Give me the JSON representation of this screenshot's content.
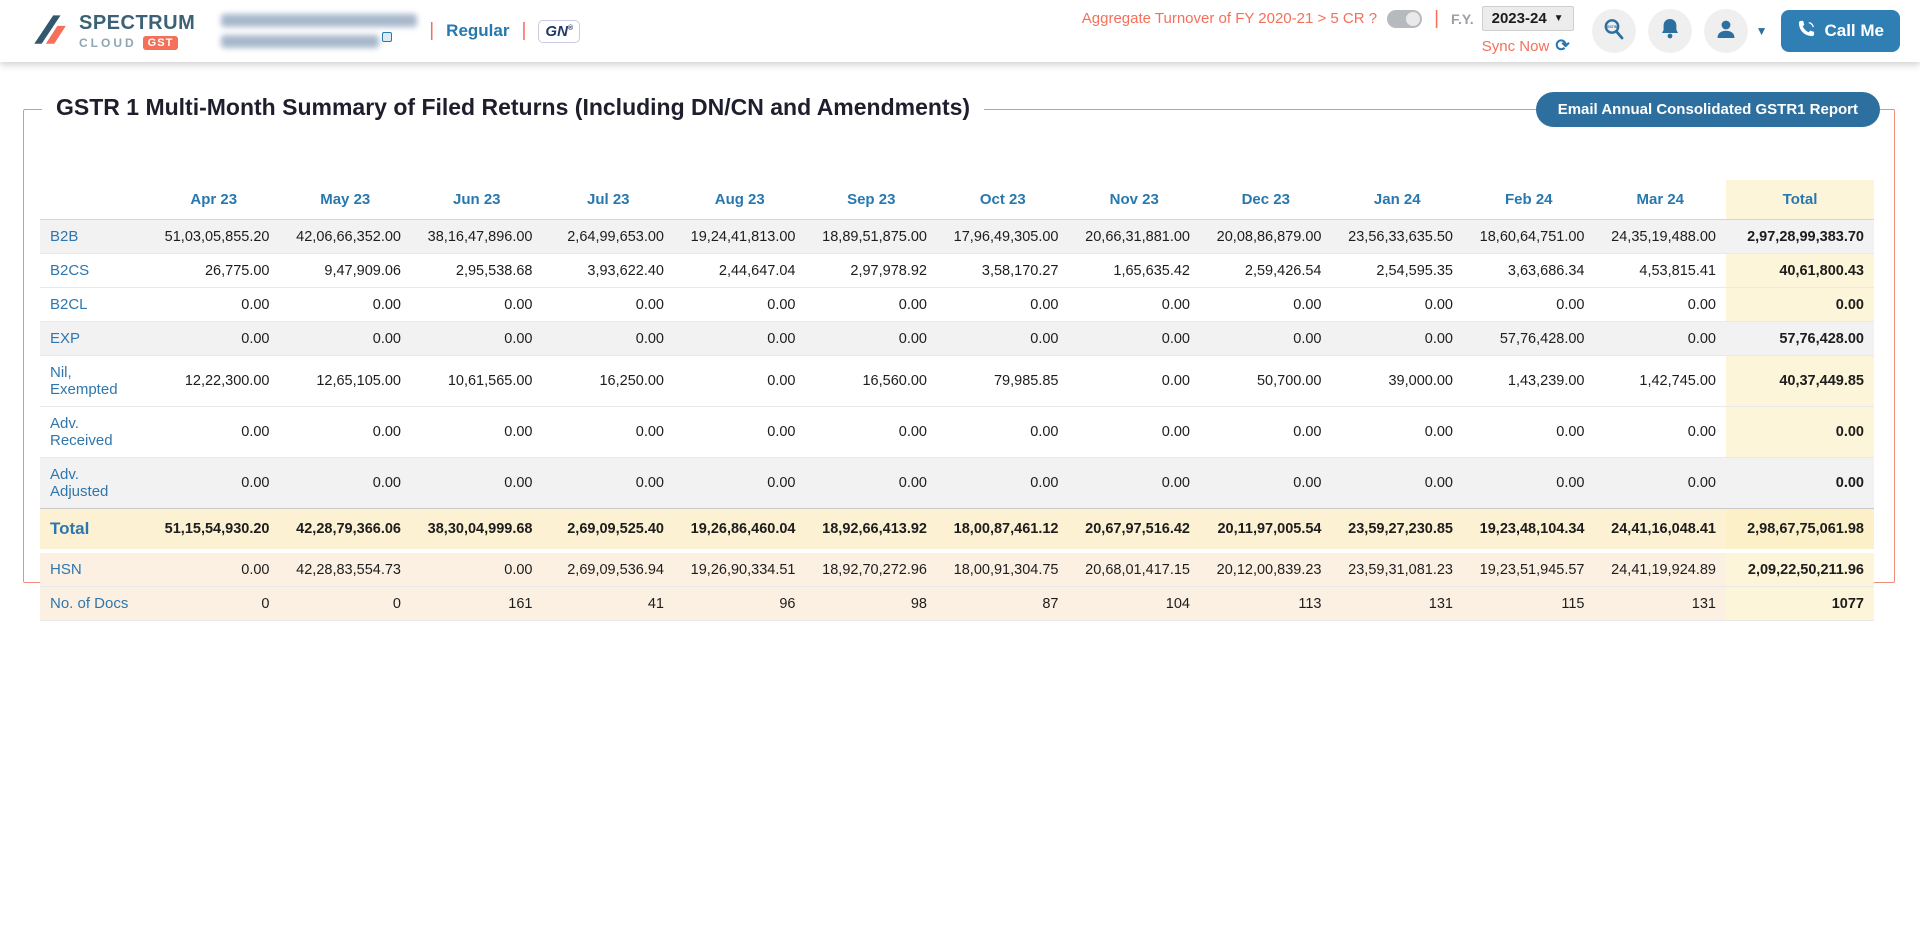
{
  "brand": {
    "name": "SPECTRUM",
    "sub": "CLOUD",
    "badge": "GST"
  },
  "company": {
    "name_redacted": true,
    "gstin_redacted": true,
    "type_label": "Regular",
    "gstn_logo": "GN"
  },
  "topbar": {
    "turnover_question": "Aggregate Turnover of FY 2020-21 > 5 CR ?",
    "toggle_state": "off",
    "fy_label": "F.Y.",
    "fy_value": "2023-24",
    "sync_label": "Sync Now",
    "call_me_label": "Call Me"
  },
  "panel": {
    "title": "GSTR 1 Multi-Month Summary of Filed Returns (Including DN/CN and Amendments)",
    "email_button_label": "Email Annual Consolidated GSTR1 Report"
  },
  "table": {
    "columns": [
      "",
      "Apr 23",
      "May 23",
      "Jun 23",
      "Jul 23",
      "Aug 23",
      "Sep 23",
      "Oct 23",
      "Nov 23",
      "Dec 23",
      "Jan 24",
      "Feb 24",
      "Mar 24",
      "Total"
    ],
    "rows": [
      {
        "label": "B2B",
        "emphasis": "shaded",
        "values": [
          "51,03,05,855.20",
          "42,06,66,352.00",
          "38,16,47,896.00",
          "2,64,99,653.00",
          "19,24,41,813.00",
          "18,89,51,875.00",
          "17,96,49,305.00",
          "20,66,31,881.00",
          "20,08,86,879.00",
          "23,56,33,635.50",
          "18,60,64,751.00",
          "24,35,19,488.00"
        ],
        "total": "2,97,28,99,383.70"
      },
      {
        "label": "B2CS",
        "emphasis": "plain",
        "values": [
          "26,775.00",
          "9,47,909.06",
          "2,95,538.68",
          "3,93,622.40",
          "2,44,647.04",
          "2,97,978.92",
          "3,58,170.27",
          "1,65,635.42",
          "2,59,426.54",
          "2,54,595.35",
          "3,63,686.34",
          "4,53,815.41"
        ],
        "total": "40,61,800.43"
      },
      {
        "label": "B2CL",
        "emphasis": "plain",
        "values": [
          "0.00",
          "0.00",
          "0.00",
          "0.00",
          "0.00",
          "0.00",
          "0.00",
          "0.00",
          "0.00",
          "0.00",
          "0.00",
          "0.00"
        ],
        "total": "0.00"
      },
      {
        "label": "EXP",
        "emphasis": "shaded",
        "values": [
          "0.00",
          "0.00",
          "0.00",
          "0.00",
          "0.00",
          "0.00",
          "0.00",
          "0.00",
          "0.00",
          "0.00",
          "57,76,428.00",
          "0.00"
        ],
        "total": "57,76,428.00"
      },
      {
        "label": "Nil, Exempted",
        "emphasis": "plain",
        "values": [
          "12,22,300.00",
          "12,65,105.00",
          "10,61,565.00",
          "16,250.00",
          "0.00",
          "16,560.00",
          "79,985.85",
          "0.00",
          "50,700.00",
          "39,000.00",
          "1,43,239.00",
          "1,42,745.00"
        ],
        "total": "40,37,449.85"
      },
      {
        "label": "Adv. Received",
        "emphasis": "plain",
        "values": [
          "0.00",
          "0.00",
          "0.00",
          "0.00",
          "0.00",
          "0.00",
          "0.00",
          "0.00",
          "0.00",
          "0.00",
          "0.00",
          "0.00"
        ],
        "total": "0.00"
      },
      {
        "label": "Adv. Adjusted",
        "emphasis": "shaded",
        "values": [
          "0.00",
          "0.00",
          "0.00",
          "0.00",
          "0.00",
          "0.00",
          "0.00",
          "0.00",
          "0.00",
          "0.00",
          "0.00",
          "0.00"
        ],
        "total": "0.00"
      },
      {
        "label": "Total",
        "emphasis": "grand",
        "values": [
          "51,15,54,930.20",
          "42,28,79,366.06",
          "38,30,04,999.68",
          "2,69,09,525.40",
          "19,26,86,460.04",
          "18,92,66,413.92",
          "18,00,87,461.12",
          "20,67,97,516.42",
          "20,11,97,005.54",
          "23,59,27,230.85",
          "19,23,48,104.34",
          "24,41,16,048.41"
        ],
        "total": "2,98,67,75,061.98"
      },
      {
        "label": "HSN",
        "emphasis": "accent gap",
        "values": [
          "0.00",
          "42,28,83,554.73",
          "0.00",
          "2,69,09,536.94",
          "19,26,90,334.51",
          "18,92,70,272.96",
          "18,00,91,304.75",
          "20,68,01,417.15",
          "20,12,00,839.23",
          "23,59,31,081.23",
          "19,23,51,945.57",
          "24,41,19,924.89"
        ],
        "total": "2,09,22,50,211.96"
      },
      {
        "label": "No. of Docs",
        "emphasis": "accent",
        "values": [
          "0",
          "0",
          "161",
          "41",
          "96",
          "98",
          "87",
          "104",
          "113",
          "131",
          "115",
          "131"
        ],
        "total": "1077"
      }
    ]
  }
}
